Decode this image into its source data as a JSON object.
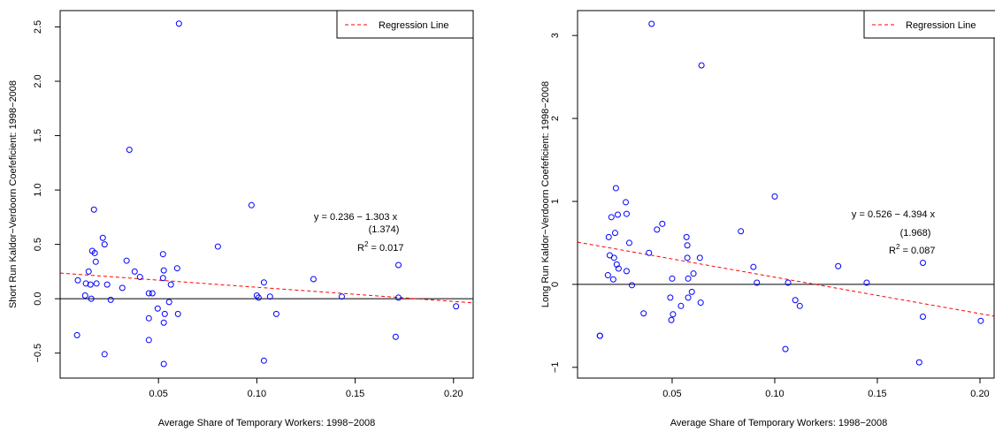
{
  "chart_data": [
    {
      "type": "scatter",
      "xlabel": "Average Share of Temporary Workers: 1998−2008",
      "ylabel": "Short Run Kaldor−Verdoorn Coefeficient: 1998−2008",
      "x": [
        0.0086,
        0.009,
        0.0127,
        0.0131,
        0.0145,
        0.0154,
        0.0158,
        0.0163,
        0.0172,
        0.0176,
        0.0181,
        0.0185,
        0.0217,
        0.0226,
        0.0226,
        0.0239,
        0.0257,
        0.0316,
        0.0338,
        0.0352,
        0.0379,
        0.0406,
        0.0451,
        0.0451,
        0.0451,
        0.0469,
        0.0496,
        0.0523,
        0.0523,
        0.0527,
        0.0527,
        0.0527,
        0.0532,
        0.0554,
        0.0563,
        0.0595,
        0.0599,
        0.0604,
        0.0802,
        0.0973,
        0.1,
        0.1009,
        0.1036,
        0.1036,
        0.1067,
        0.1099,
        0.1288,
        0.1432,
        0.1706,
        0.172,
        0.172,
        0.2013
      ],
      "values": [
        -0.335,
        0.17,
        0.03,
        0.14,
        0.25,
        0.13,
        0.0,
        0.44,
        0.82,
        0.42,
        0.34,
        0.14,
        0.56,
        0.5,
        -0.51,
        0.13,
        -0.01,
        0.1,
        0.35,
        1.37,
        0.25,
        0.2,
        0.05,
        -0.18,
        -0.38,
        0.05,
        -0.09,
        0.41,
        0.19,
        0.26,
        -0.22,
        -0.6,
        -0.14,
        -0.03,
        0.13,
        0.28,
        -0.14,
        2.53,
        0.48,
        0.86,
        0.03,
        0.01,
        -0.57,
        0.15,
        0.02,
        -0.14,
        0.18,
        0.02,
        -0.35,
        0.31,
        0.01,
        -0.07
      ],
      "color": "#0000ff",
      "xlim": [
        0.0,
        0.21
      ],
      "ylim": [
        -0.73,
        2.65
      ],
      "xticks": [
        0.05,
        {
          "value": 0.1,
          "label": "0.10"
        },
        0.15,
        {
          "value": 0.2,
          "label": "0.20"
        }
      ],
      "yticks": [
        {
          "value": -0.5,
          "label": "−0.5"
        },
        {
          "value": 0,
          "label": "0.0"
        },
        0.5,
        {
          "value": 1,
          "label": "1.0"
        },
        1.5,
        {
          "value": 2,
          "label": "2.0"
        },
        2.5
      ],
      "hline": 0,
      "regression": {
        "label": "Regression Line",
        "intercept": 0.236,
        "slope": -1.303,
        "color": "#ff0000"
      },
      "legend": "topright",
      "annotation": {
        "equation": "y = 0.236 − 1.303 x",
        "se": "(1.374)",
        "r2_base": "R",
        "r2_sup": "2",
        "r2_text": " = 0.017"
      }
    },
    {
      "type": "scatter",
      "xlabel": "Average Share of Temporary Workers: 1998−2008",
      "ylabel": "Long Run Kaldor−Verdoorn Coefeficient: 1998−2008",
      "x": [
        0.0148,
        0.0148,
        0.0187,
        0.0191,
        0.0196,
        0.0204,
        0.0213,
        0.0217,
        0.0222,
        0.0226,
        0.023,
        0.0235,
        0.0239,
        0.0274,
        0.0278,
        0.0278,
        0.0291,
        0.0304,
        0.0361,
        0.0387,
        0.04,
        0.0426,
        0.0452,
        0.0491,
        0.0496,
        0.0504,
        0.05,
        0.0543,
        0.057,
        0.0574,
        0.0574,
        0.0578,
        0.0578,
        0.0596,
        0.0604,
        0.0635,
        0.0639,
        0.0643,
        0.0835,
        0.0896,
        0.0913,
        0.1,
        0.1052,
        0.1065,
        0.11,
        0.1122,
        0.1309,
        0.1448,
        0.1704,
        0.1722,
        0.1722,
        0.2004
      ],
      "values": [
        -0.62,
        -0.62,
        0.11,
        0.57,
        0.35,
        0.81,
        0.06,
        0.32,
        0.62,
        1.16,
        0.24,
        0.84,
        0.19,
        0.99,
        0.85,
        0.16,
        0.5,
        -0.01,
        -0.35,
        0.38,
        3.14,
        0.66,
        0.73,
        -0.16,
        -0.43,
        -0.36,
        0.07,
        -0.26,
        0.57,
        0.47,
        0.32,
        0.07,
        -0.16,
        -0.09,
        0.13,
        0.32,
        -0.22,
        2.64,
        0.64,
        0.21,
        0.02,
        1.06,
        -0.78,
        0.02,
        -0.19,
        -0.26,
        0.22,
        0.02,
        -0.94,
        0.26,
        -0.39,
        -0.44
      ],
      "color": "#0000ff",
      "xlim": [
        0.0039,
        0.2069
      ],
      "ylim": [
        -1.13,
        3.3
      ],
      "xticks": [
        0.05,
        {
          "value": 0.1,
          "label": "0.10"
        },
        0.15,
        {
          "value": 0.2,
          "label": "0.20"
        }
      ],
      "yticks": [
        {
          "value": -1,
          "label": "−1"
        },
        0,
        1,
        2,
        3
      ],
      "hline": 0,
      "regression": {
        "label": "Regression Line",
        "intercept": 0.526,
        "slope": -4.394,
        "color": "#ff0000"
      },
      "legend": "topright",
      "annotation": {
        "equation": "y = 0.526 − 4.394 x",
        "se": "(1.968)",
        "r2_base": "R",
        "r2_sup": "2",
        "r2_text": " = 0.087"
      }
    }
  ]
}
